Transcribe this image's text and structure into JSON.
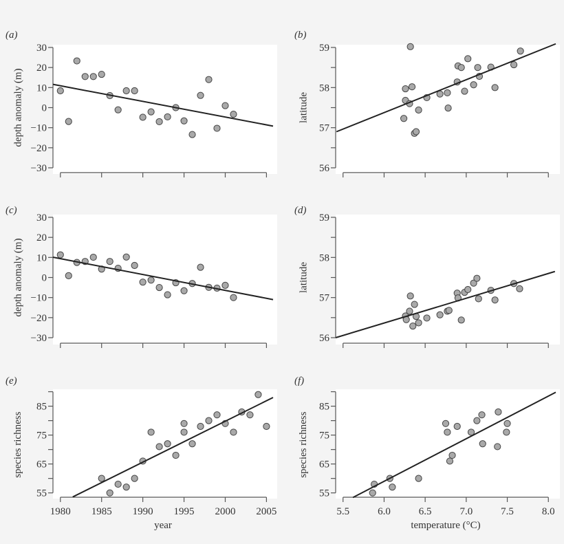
{
  "chart_data": [
    {
      "panel_label": "(a)",
      "type": "scatter",
      "xlabel": "",
      "ylabel": "depth anomaly (m)",
      "xlim": [
        1979.1,
        2005.8
      ],
      "ylim": [
        -30,
        30
      ],
      "xticks": [
        1980,
        1985,
        1990,
        1995,
        2000,
        2005
      ],
      "xtick_labels": [],
      "yticks": [
        -30,
        -20,
        -10,
        0,
        10,
        20,
        30
      ],
      "ytick_labels": [
        "−30",
        "−20",
        "−10",
        "0",
        "10",
        "20",
        "30"
      ],
      "points": [
        [
          1980,
          8.4
        ],
        [
          1981,
          -6.9
        ],
        [
          1982,
          23.3
        ],
        [
          1983,
          15.5
        ],
        [
          1984,
          15.5
        ],
        [
          1985,
          16.6
        ],
        [
          1986,
          6.0
        ],
        [
          1987,
          -1.1
        ],
        [
          1988,
          8.4
        ],
        [
          1989,
          8.4
        ],
        [
          1990,
          -4.8
        ],
        [
          1991,
          -2.1
        ],
        [
          1992,
          -7.0
        ],
        [
          1993,
          -4.6
        ],
        [
          1994,
          0.0
        ],
        [
          1995,
          -6.6
        ],
        [
          1996,
          -13.4
        ],
        [
          1997,
          6.1
        ],
        [
          1998,
          14.0
        ],
        [
          1999,
          -10.3
        ],
        [
          2000,
          1.0
        ],
        [
          2001,
          -3.3
        ]
      ],
      "fit_line": [
        [
          1979.1,
          11.6
        ],
        [
          2005.8,
          -9.2
        ]
      ]
    },
    {
      "panel_label": "(b)",
      "type": "scatter",
      "xlabel": "",
      "ylabel": "latitude",
      "xlim": [
        5.41,
        8.09
      ],
      "ylim": [
        56,
        59
      ],
      "xticks": [
        5.5,
        6.0,
        6.5,
        7.0,
        7.5,
        8.0
      ],
      "xtick_labels": [],
      "yticks": [
        56,
        56.5,
        57,
        57.5,
        58,
        58.5,
        59
      ],
      "ytick_labels": [
        "56",
        "",
        "57",
        "",
        "58",
        "",
        "59"
      ],
      "points": [
        [
          6.32,
          59.02
        ],
        [
          6.26,
          57.97
        ],
        [
          6.34,
          58.02
        ],
        [
          6.26,
          57.68
        ],
        [
          6.31,
          57.6
        ],
        [
          6.24,
          57.23
        ],
        [
          6.42,
          57.44
        ],
        [
          6.37,
          56.86
        ],
        [
          6.39,
          56.9
        ],
        [
          6.52,
          57.75
        ],
        [
          6.68,
          57.84
        ],
        [
          6.77,
          57.87
        ],
        [
          6.78,
          57.49
        ],
        [
          6.89,
          58.14
        ],
        [
          6.9,
          58.54
        ],
        [
          6.94,
          58.5
        ],
        [
          6.98,
          57.91
        ],
        [
          7.02,
          58.72
        ],
        [
          7.09,
          58.07
        ],
        [
          7.14,
          58.5
        ],
        [
          7.16,
          58.28
        ],
        [
          7.3,
          58.51
        ],
        [
          7.35,
          58.0
        ],
        [
          7.58,
          58.57
        ],
        [
          7.66,
          58.91
        ]
      ],
      "fit_line": [
        [
          5.42,
          56.9
        ],
        [
          8.09,
          59.09
        ]
      ]
    },
    {
      "panel_label": "(c)",
      "type": "scatter",
      "xlabel": "",
      "ylabel": "depth anomaly (m)",
      "xlim": [
        1979.1,
        2005.8
      ],
      "ylim": [
        -30,
        30
      ],
      "xticks": [
        1980,
        1985,
        1990,
        1995,
        2000,
        2005
      ],
      "xtick_labels": [],
      "yticks": [
        -30,
        -20,
        -10,
        0,
        10,
        20,
        30
      ],
      "ytick_labels": [
        "−30",
        "−20",
        "−10",
        "0",
        "10",
        "20",
        "30"
      ],
      "points": [
        [
          1980,
          11.3
        ],
        [
          1981,
          0.9
        ],
        [
          1982,
          7.5
        ],
        [
          1983,
          8.0
        ],
        [
          1984,
          10.1
        ],
        [
          1985,
          4.2
        ],
        [
          1986,
          8.0
        ],
        [
          1987,
          4.6
        ],
        [
          1988,
          10.2
        ],
        [
          1989,
          6.0
        ],
        [
          1990,
          -2.3
        ],
        [
          1991,
          -1.3
        ],
        [
          1992,
          -5.0
        ],
        [
          1993,
          -8.6
        ],
        [
          1994,
          -2.6
        ],
        [
          1995,
          -6.6
        ],
        [
          1996,
          -3.0
        ],
        [
          1997,
          5.1
        ],
        [
          1998,
          -4.9
        ],
        [
          1999,
          -5.3
        ],
        [
          2000,
          -3.9
        ],
        [
          2001,
          -10.0
        ]
      ],
      "fit_line": [
        [
          1979.1,
          10.1
        ],
        [
          2005.8,
          -11.0
        ]
      ]
    },
    {
      "panel_label": "(d)",
      "type": "scatter",
      "xlabel": "",
      "ylabel": "latitude",
      "xlim": [
        5.41,
        8.09
      ],
      "ylim": [
        56,
        59
      ],
      "xticks": [
        5.5,
        6.0,
        6.5,
        7.0,
        7.5,
        8.0
      ],
      "xtick_labels": [],
      "yticks": [
        56,
        56.5,
        57,
        57.5,
        58,
        58.5,
        59
      ],
      "ytick_labels": [
        "56",
        "",
        "57",
        "",
        "58",
        "",
        "59"
      ],
      "points": [
        [
          6.26,
          56.54
        ],
        [
          6.27,
          56.45
        ],
        [
          6.32,
          57.04
        ],
        [
          6.31,
          56.66
        ],
        [
          6.37,
          56.83
        ],
        [
          6.39,
          56.53
        ],
        [
          6.35,
          56.29
        ],
        [
          6.42,
          56.37
        ],
        [
          6.52,
          56.49
        ],
        [
          6.68,
          56.57
        ],
        [
          6.77,
          56.66
        ],
        [
          6.79,
          56.68
        ],
        [
          6.89,
          57.11
        ],
        [
          6.9,
          56.99
        ],
        [
          6.94,
          56.44
        ],
        [
          6.98,
          57.13
        ],
        [
          7.02,
          57.2
        ],
        [
          7.09,
          57.36
        ],
        [
          7.13,
          57.48
        ],
        [
          7.15,
          56.97
        ],
        [
          7.3,
          57.18
        ],
        [
          7.35,
          56.94
        ],
        [
          7.58,
          57.35
        ],
        [
          7.65,
          57.22
        ]
      ],
      "fit_line": [
        [
          5.41,
          56.0
        ],
        [
          8.08,
          57.65
        ]
      ]
    },
    {
      "panel_label": "(e)",
      "type": "scatter",
      "xlabel": "year",
      "ylabel": "species richness",
      "xlim": [
        1979.1,
        2005.8
      ],
      "ylim": [
        53.4,
        89.9
      ],
      "xticks": [
        1980,
        1985,
        1990,
        1995,
        2000,
        2005
      ],
      "xtick_labels": [
        "1980",
        "1985",
        "1990",
        "1995",
        "2000",
        "2005"
      ],
      "yticks": [
        55,
        60,
        65,
        70,
        75,
        80,
        85,
        90
      ],
      "ytick_labels": [
        "55",
        "",
        "65",
        "",
        "75",
        "",
        "85",
        ""
      ],
      "points": [
        [
          1985,
          60
        ],
        [
          1986,
          55
        ],
        [
          1987,
          58
        ],
        [
          1988,
          57
        ],
        [
          1989,
          60
        ],
        [
          1990,
          66
        ],
        [
          1991,
          76
        ],
        [
          1992,
          71
        ],
        [
          1993,
          72
        ],
        [
          1994,
          68
        ],
        [
          1995,
          79
        ],
        [
          1995,
          76
        ],
        [
          1996,
          72
        ],
        [
          1997,
          78
        ],
        [
          1998,
          80
        ],
        [
          1999,
          82
        ],
        [
          2000,
          79
        ],
        [
          2001,
          76
        ],
        [
          2002,
          83
        ],
        [
          2003,
          82
        ],
        [
          2004,
          89
        ],
        [
          2005,
          78
        ]
      ],
      "fit_line": [
        [
          1981.5,
          53.6
        ],
        [
          2005.8,
          88.0
        ]
      ]
    },
    {
      "panel_label": "(f)",
      "type": "scatter",
      "xlabel": "temperature (°C)",
      "ylabel": "species richness",
      "xlim": [
        5.41,
        8.09
      ],
      "ylim": [
        53.4,
        89.9
      ],
      "xticks": [
        5.5,
        6.0,
        6.5,
        7.0,
        7.5,
        8.0
      ],
      "xtick_labels": [
        "5.5",
        "6.0",
        "6.5",
        "7.0",
        "7.5",
        "8.0"
      ],
      "yticks": [
        55,
        60,
        65,
        70,
        75,
        80,
        85,
        90
      ],
      "ytick_labels": [
        "55",
        "",
        "65",
        "",
        "75",
        "",
        "85",
        ""
      ],
      "points": [
        [
          5.88,
          58
        ],
        [
          5.86,
          55
        ],
        [
          6.07,
          60
        ],
        [
          6.1,
          57
        ],
        [
          6.42,
          60
        ],
        [
          6.75,
          79
        ],
        [
          6.77,
          76
        ],
        [
          6.89,
          78
        ],
        [
          6.8,
          66
        ],
        [
          6.83,
          68
        ],
        [
          7.06,
          76
        ],
        [
          7.13,
          80
        ],
        [
          7.19,
          82
        ],
        [
          7.2,
          72
        ],
        [
          7.39,
          83
        ],
        [
          7.38,
          71
        ],
        [
          7.5,
          79
        ],
        [
          7.49,
          76
        ]
      ],
      "fit_line": [
        [
          5.62,
          53.4
        ],
        [
          8.09,
          89.8
        ]
      ]
    }
  ],
  "colors": {
    "point_fill": "#a9a9a9",
    "point_stroke": "#444444",
    "line": "#222222",
    "axis": "#555555"
  }
}
